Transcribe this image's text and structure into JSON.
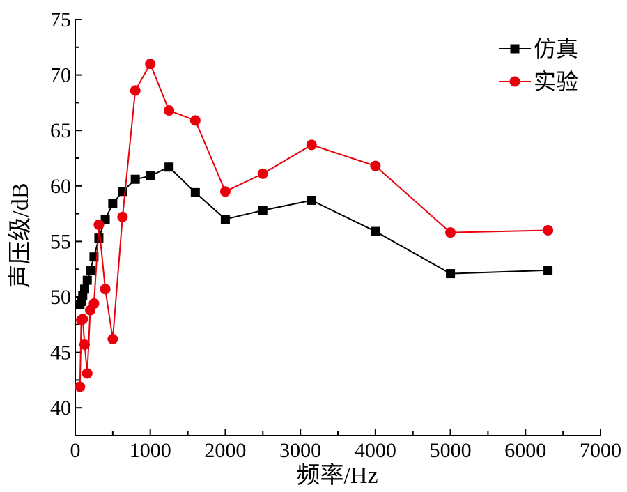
{
  "chart_data": {
    "type": "line",
    "xlabel": "频率/Hz",
    "ylabel": "声压级/dB",
    "xlim": [
      0,
      7000
    ],
    "ylim": [
      37.5,
      75
    ],
    "xticks": [
      0,
      1000,
      2000,
      3000,
      4000,
      5000,
      6000,
      7000
    ],
    "yticks": [
      40,
      45,
      50,
      55,
      60,
      65,
      70,
      75
    ],
    "grid": false,
    "legend_position": "top-right",
    "series": [
      {
        "name": "仿真",
        "color": "#000000",
        "marker": "square",
        "x": [
          63,
          80,
          100,
          125,
          160,
          200,
          250,
          315,
          400,
          500,
          630,
          800,
          1000,
          1250,
          1600,
          2000,
          2500,
          3150,
          4000,
          5000,
          6300
        ],
        "y": [
          49.3,
          49.6,
          50.1,
          50.7,
          51.5,
          52.4,
          53.6,
          55.3,
          57.0,
          58.4,
          59.5,
          60.6,
          60.9,
          61.7,
          59.4,
          57.0,
          57.8,
          58.7,
          55.9,
          52.1,
          52.4
        ]
      },
      {
        "name": "实验",
        "color": "#e8000b",
        "marker": "circle",
        "x": [
          63,
          80,
          100,
          125,
          160,
          200,
          250,
          315,
          400,
          500,
          630,
          800,
          1000,
          1250,
          1600,
          2000,
          2500,
          3150,
          4000,
          5000,
          6300
        ],
        "y": [
          41.9,
          47.9,
          48.0,
          45.7,
          43.1,
          48.8,
          49.4,
          56.5,
          50.7,
          46.2,
          57.2,
          68.6,
          71.0,
          66.8,
          65.9,
          59.5,
          61.1,
          63.7,
          61.8,
          55.8,
          56.0
        ]
      }
    ]
  }
}
